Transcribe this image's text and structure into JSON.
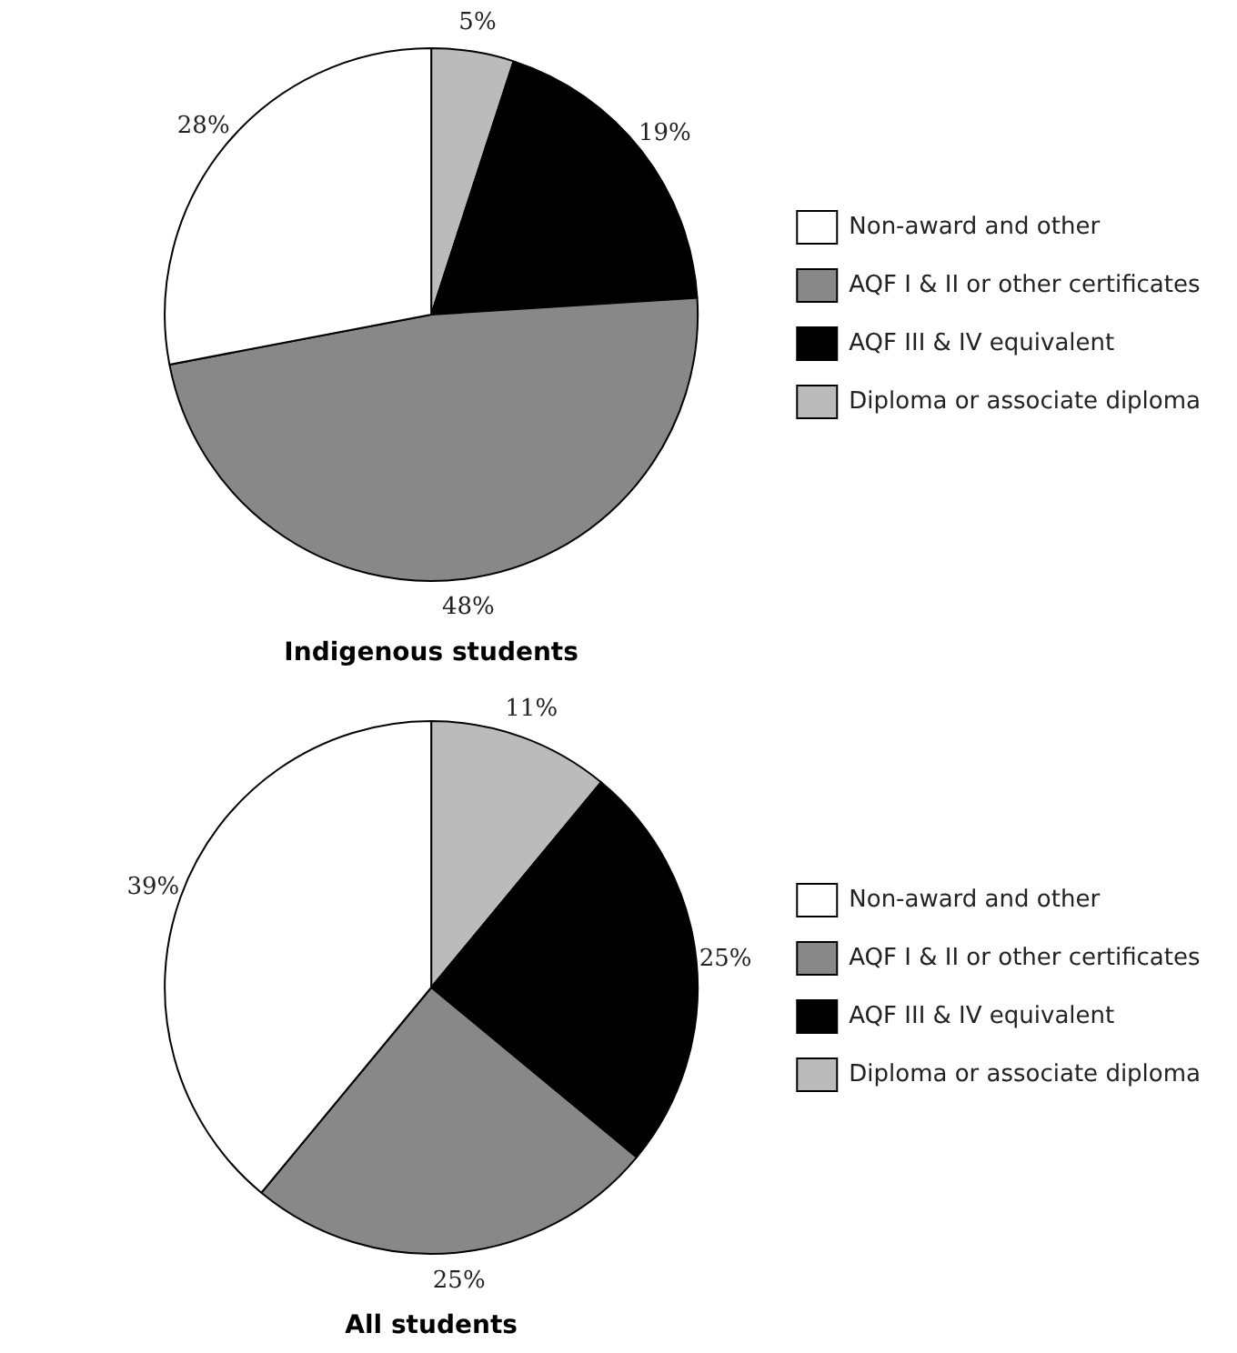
{
  "chart_data": [
    {
      "type": "pie",
      "title": "Indigenous students",
      "categories": [
        "Diploma or associate diploma",
        "AQF III & IV equivalent",
        "AQF I & II or other certificates",
        "Non-award and other"
      ],
      "values": [
        5,
        19,
        48,
        28
      ],
      "value_labels": [
        "5%",
        "19%",
        "48%",
        "28%"
      ],
      "colors": [
        "#bbbbbb",
        "#000000",
        "#888888",
        "#ffffff"
      ],
      "legend": "right"
    },
    {
      "type": "pie",
      "title": "All students",
      "categories": [
        "Diploma or associate diploma",
        "AQF III & IV equivalent",
        "AQF I & II or other certificates",
        "Non-award and other"
      ],
      "values": [
        11,
        25,
        25,
        39
      ],
      "value_labels": [
        "11%",
        "25%",
        "25%",
        "39%"
      ],
      "colors": [
        "#bbbbbb",
        "#000000",
        "#888888",
        "#ffffff"
      ],
      "legend": "right"
    }
  ]
}
